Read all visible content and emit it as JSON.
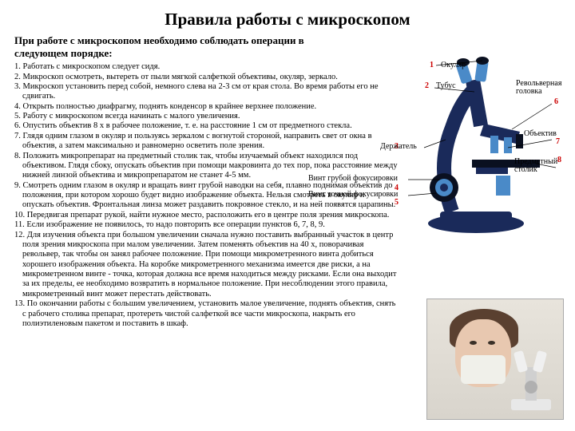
{
  "title": "Правила работы с микроскопом",
  "subtitle_line1": "При работе с микроскопом необходимо соблюдать операции в",
  "subtitle_line2": "следующем порядке:",
  "rules": [
    "1. Работать с микроскопом следует сидя.",
    "2. Микроскоп осмотреть, вытереть от пыли мягкой салфеткой объективы, окуляр, зеркало.",
    "3. Микроскоп установить перед собой, немного слева на 2-3 см от края стола. Во время работы его не сдвигать.",
    "4. Открыть полностью диафрагму, поднять конденсор в крайнее верхнее положение.",
    "5. Работу с микроскопом всегда начинать с малого увеличения.",
    "6. Опустить объектив 8 х в рабочее положение, т. е. на расстояние 1 см от предметного стекла.",
    "7. Глядя одним глазом в окуляр и пользуясь зеркалом с вогнутой стороной, направить свет от окна в объектив, а затем максимально и равномерно осветить поле зрения.",
    "8. Положить микропрепарат на предметный столик так, чтобы изучаемый объект находился под объективом. Глядя сбоку, опускать объектив при помощи макровинта до тех пор, пока расстояние между нижней линзой объектива и микропрепаратом не станет 4-5 мм.",
    "9. Смотреть одним глазом в окуляр и вращать винт грубой наводки на себя, плавно поднимая объектив до положения, при котором хорошо будет видно изображение объекта. Нельзя смотреть в окуляр и опускать объектив. Фронтальная линза может раздавить покровное стекло, и на ней появятся царапины.",
    "10. Передвигая препарат рукой, найти нужное место, расположить его в центре поля зрения микроскопа.",
    "11. Если изображение не появилось, то надо повторить все операции пунктов 6, 7, 8, 9.",
    "12. Для изучения объекта при большом увеличении сначала нужно поставить выбранный участок в центр поля зрения микроскопа при малом увеличении. Затем поменять объектив на 40 х, поворачивая револьвер, так чтобы он занял рабочее положение. При помощи микрометренного винта добиться хорошего изображения объекта. На коробке микрометренного механизма имеется две риски, а на микрометренном винте - точка, которая должна все время находиться между рисками. Если она выходит за их пределы, ее необходимо возвратить в нормальное положение. При несоблюдении этого правила, микрометренный винт может перестать действовать.",
    "13. По окончании работы с большим увеличением, установить малое увеличение, поднять объектив, снять с рабочего столика препарат, протереть чистой салфеткой все части микроскопа, накрыть его полиэтиленовым пакетом и поставить в шкаф."
  ],
  "labels": {
    "okulyar": "Окуляр",
    "tubus": "Тубус",
    "revolver": "Револьверная головка",
    "obektiv": "Объектив",
    "derzhatel": "Держатель",
    "stolik": "Предметный столик",
    "grubaya": "Винт грубой фокусировки",
    "tochnaya": "Винт точной фокусировки"
  },
  "nums": {
    "n1": "1",
    "n2": "2",
    "n3": "3",
    "n4": "4",
    "n5": "5",
    "n6": "6",
    "n7": "7",
    "n8": "8"
  },
  "colors": {
    "scope_body": "#1a2a5a",
    "scope_accent": "#4a8ac8",
    "scope_dark": "#0a1020",
    "red": "#cc0000",
    "bg": "#ffffff"
  }
}
